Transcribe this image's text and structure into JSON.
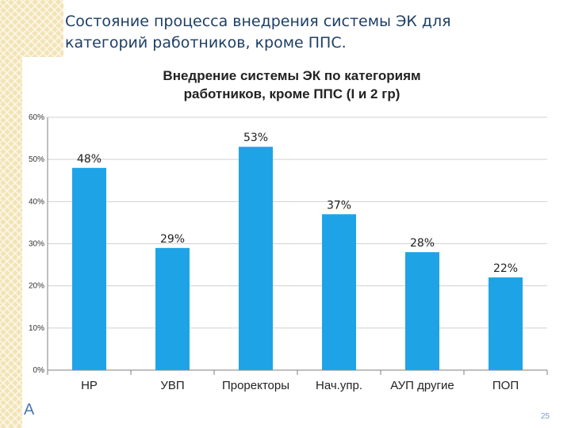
{
  "slide": {
    "title_line1": "Состояние процесса внедрения системы ЭК для",
    "title_line2": "категорий работников, кроме ППС.",
    "footer_letter": "А",
    "page_number": "25"
  },
  "colors": {
    "bar": "#1ea4e6",
    "grid": "#d0d0d0",
    "axis": "#7f7f7f",
    "title_text": "#1e3f66"
  },
  "chart_data": {
    "type": "bar",
    "title_line1": "Внедрение системы ЭК по категориям",
    "title_line2": "работников, кроме ППС (I и 2 гр)",
    "categories": [
      "НР",
      "УВП",
      "Проректоры",
      "Нач.упр.",
      "АУП другие",
      "ПОП"
    ],
    "values": [
      48,
      29,
      53,
      37,
      28,
      22
    ],
    "data_labels": [
      "48%",
      "29%",
      "53%",
      "37%",
      "28%",
      "22%"
    ],
    "y_ticks": [
      0,
      10,
      20,
      30,
      40,
      50,
      60
    ],
    "y_tick_labels": [
      "0%",
      "10%",
      "20%",
      "30%",
      "40%",
      "50%",
      "60%"
    ],
    "ylim": [
      0,
      60
    ],
    "grid": true,
    "legend": "none",
    "xlabel": "",
    "ylabel": ""
  }
}
